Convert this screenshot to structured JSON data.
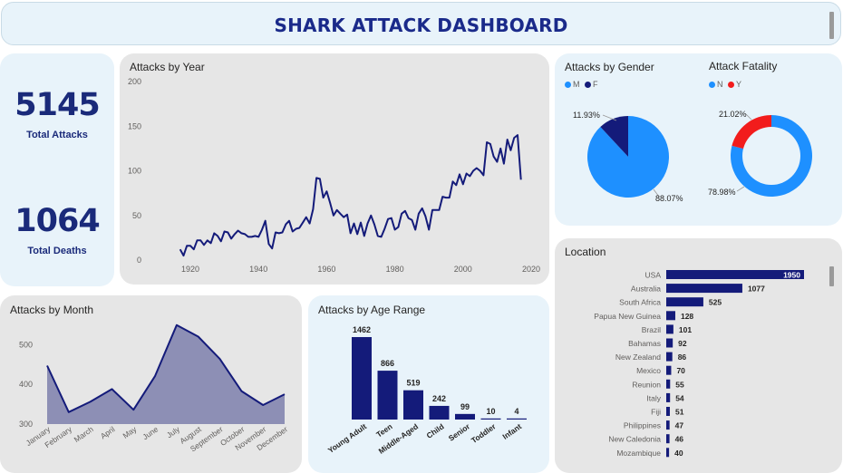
{
  "dashboard": {
    "title": "SHARK ATTACK DASHBOARD",
    "colors": {
      "navy": "#141b7a",
      "blue": "#1e90ff",
      "red": "#f21c1c",
      "panel_light": "#e8f3fa",
      "panel_grey": "#e6e6e6"
    }
  },
  "kpis": {
    "total_attacks_value": "5145",
    "total_attacks_label": "Total Attacks",
    "total_deaths_value": "1064",
    "total_deaths_label": "Total Deaths"
  },
  "chart_data": [
    {
      "id": "attacks_by_year",
      "type": "line",
      "title": "Attacks by Year",
      "xlabel": "",
      "ylabel": "",
      "xlim": [
        1915,
        2022
      ],
      "ylim": [
        0,
        200
      ],
      "yticks": [
        "200",
        "150",
        "100",
        "50",
        "0"
      ],
      "xticks": [
        "1920",
        "1940",
        "1960",
        "1980",
        "2000",
        "2020"
      ],
      "x": [
        1917,
        1918,
        1919,
        1920,
        1921,
        1922,
        1923,
        1924,
        1925,
        1926,
        1927,
        1928,
        1929,
        1930,
        1931,
        1932,
        1933,
        1934,
        1935,
        1936,
        1937,
        1938,
        1939,
        1940,
        1941,
        1942,
        1943,
        1944,
        1945,
        1946,
        1947,
        1948,
        1949,
        1950,
        1951,
        1952,
        1953,
        1954,
        1955,
        1956,
        1957,
        1958,
        1959,
        1960,
        1961,
        1962,
        1963,
        1964,
        1965,
        1966,
        1967,
        1968,
        1969,
        1970,
        1971,
        1972,
        1973,
        1974,
        1975,
        1976,
        1977,
        1978,
        1979,
        1980,
        1981,
        1982,
        1983,
        1984,
        1985,
        1986,
        1987,
        1988,
        1989,
        1990,
        1991,
        1992,
        1993,
        1994,
        1995,
        1996,
        1997,
        1998,
        1999,
        2000,
        2001,
        2002,
        2003,
        2004,
        2005,
        2006,
        2007,
        2008,
        2009,
        2010,
        2011,
        2012,
        2013,
        2014,
        2015,
        2016,
        2017
      ],
      "series": [
        {
          "values": [
            12,
            5,
            16,
            16,
            12,
            22,
            22,
            17,
            22,
            19,
            30,
            27,
            21,
            32,
            31,
            24,
            29,
            33,
            30,
            29,
            26,
            26,
            27,
            26,
            34,
            44,
            18,
            13,
            31,
            30,
            31,
            40,
            44,
            32,
            35,
            36,
            42,
            48,
            41,
            57,
            92,
            91,
            70,
            77,
            64,
            50,
            56,
            52,
            48,
            51,
            30,
            41,
            29,
            42,
            27,
            41,
            50,
            40,
            27,
            26,
            35,
            46,
            47,
            34,
            37,
            52,
            55,
            47,
            45,
            34,
            52,
            58,
            49,
            34,
            56,
            56,
            56,
            71,
            70,
            70,
            88,
            84,
            96,
            85,
            97,
            94,
            100,
            103,
            100,
            95,
            132,
            130,
            116,
            110,
            125,
            108,
            135,
            123,
            137,
            140,
            90
          ]
        }
      ]
    },
    {
      "id": "attacks_by_gender",
      "type": "pie",
      "title": "Attacks by Gender",
      "legend": [
        "M",
        "F"
      ],
      "colors": [
        "#1e90ff",
        "#141b7a"
      ],
      "values": [
        88.07,
        11.93
      ],
      "labels": [
        "88.07%",
        "11.93%"
      ]
    },
    {
      "id": "attack_fatality",
      "type": "pie",
      "title": "Attack Fatality",
      "legend": [
        "N",
        "Y"
      ],
      "colors": [
        "#1e90ff",
        "#f21c1c"
      ],
      "values": [
        78.98,
        21.02
      ],
      "labels": [
        "78.98%",
        "21.02%"
      ]
    },
    {
      "id": "attacks_by_month",
      "type": "area",
      "title": "Attacks by Month",
      "ylim": [
        300,
        560
      ],
      "yticks": [
        "500",
        "400",
        "300"
      ],
      "categories": [
        "January",
        "February",
        "March",
        "April",
        "May",
        "June",
        "July",
        "August",
        "September",
        "October",
        "November",
        "December"
      ],
      "values": [
        447,
        330,
        356,
        388,
        336,
        421,
        549,
        520,
        464,
        383,
        348,
        375
      ]
    },
    {
      "id": "attacks_by_age_range",
      "type": "bar",
      "title": "Attacks by Age Range",
      "categories": [
        "Young Adult",
        "Teen",
        "Middle-Aged",
        "Child",
        "Senior",
        "Toddler",
        "Infant"
      ],
      "values": [
        1462,
        866,
        519,
        242,
        99,
        10,
        4
      ],
      "labels": [
        "1462",
        "866",
        "519",
        "242",
        "99",
        "10",
        "4"
      ]
    },
    {
      "id": "location",
      "type": "bar",
      "orientation": "horizontal",
      "title": "Location",
      "categories": [
        "USA",
        "Australia",
        "South Africa",
        "Papua New Guinea",
        "Brazil",
        "Bahamas",
        "New Zealand",
        "Mexico",
        "Reunion",
        "Italy",
        "Fiji",
        "Philippines",
        "New Caledonia",
        "Mozambique"
      ],
      "values": [
        1950,
        1077,
        525,
        128,
        101,
        92,
        86,
        70,
        55,
        54,
        51,
        47,
        46,
        40
      ],
      "labels": [
        "1950",
        "1077",
        "525",
        "128",
        "101",
        "92",
        "86",
        "70",
        "55",
        "54",
        "51",
        "47",
        "46",
        "40"
      ]
    }
  ]
}
